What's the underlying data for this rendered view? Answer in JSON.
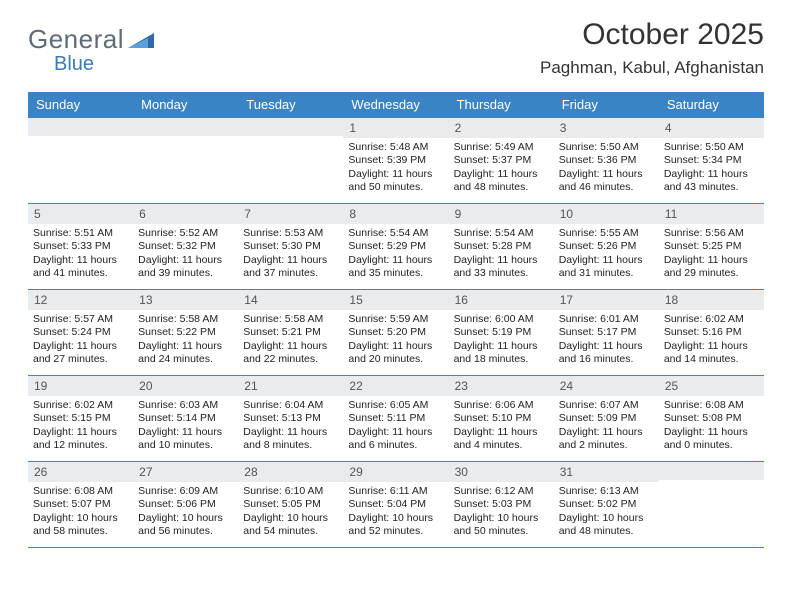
{
  "logo": {
    "word1": "General",
    "word2": "Blue"
  },
  "colors": {
    "header_bg": "#3a83c4",
    "header_text": "#ffffff",
    "daynum_bg": "#e8ecef",
    "border": "#3a83c4",
    "logo_gray": "#5f6b76",
    "logo_blue": "#3a7ab8"
  },
  "title": "October 2025",
  "location": "Paghman, Kabul, Afghanistan",
  "weekdays": [
    "Sunday",
    "Monday",
    "Tuesday",
    "Wednesday",
    "Thursday",
    "Friday",
    "Saturday"
  ],
  "weeks": [
    [
      {
        "empty": true
      },
      {
        "empty": true
      },
      {
        "empty": true
      },
      {
        "num": "1",
        "sunrise": "5:48 AM",
        "sunset": "5:39 PM",
        "daylight": "11 hours and 50 minutes."
      },
      {
        "num": "2",
        "sunrise": "5:49 AM",
        "sunset": "5:37 PM",
        "daylight": "11 hours and 48 minutes."
      },
      {
        "num": "3",
        "sunrise": "5:50 AM",
        "sunset": "5:36 PM",
        "daylight": "11 hours and 46 minutes."
      },
      {
        "num": "4",
        "sunrise": "5:50 AM",
        "sunset": "5:34 PM",
        "daylight": "11 hours and 43 minutes."
      }
    ],
    [
      {
        "num": "5",
        "sunrise": "5:51 AM",
        "sunset": "5:33 PM",
        "daylight": "11 hours and 41 minutes."
      },
      {
        "num": "6",
        "sunrise": "5:52 AM",
        "sunset": "5:32 PM",
        "daylight": "11 hours and 39 minutes."
      },
      {
        "num": "7",
        "sunrise": "5:53 AM",
        "sunset": "5:30 PM",
        "daylight": "11 hours and 37 minutes."
      },
      {
        "num": "8",
        "sunrise": "5:54 AM",
        "sunset": "5:29 PM",
        "daylight": "11 hours and 35 minutes."
      },
      {
        "num": "9",
        "sunrise": "5:54 AM",
        "sunset": "5:28 PM",
        "daylight": "11 hours and 33 minutes."
      },
      {
        "num": "10",
        "sunrise": "5:55 AM",
        "sunset": "5:26 PM",
        "daylight": "11 hours and 31 minutes."
      },
      {
        "num": "11",
        "sunrise": "5:56 AM",
        "sunset": "5:25 PM",
        "daylight": "11 hours and 29 minutes."
      }
    ],
    [
      {
        "num": "12",
        "sunrise": "5:57 AM",
        "sunset": "5:24 PM",
        "daylight": "11 hours and 27 minutes."
      },
      {
        "num": "13",
        "sunrise": "5:58 AM",
        "sunset": "5:22 PM",
        "daylight": "11 hours and 24 minutes."
      },
      {
        "num": "14",
        "sunrise": "5:58 AM",
        "sunset": "5:21 PM",
        "daylight": "11 hours and 22 minutes."
      },
      {
        "num": "15",
        "sunrise": "5:59 AM",
        "sunset": "5:20 PM",
        "daylight": "11 hours and 20 minutes."
      },
      {
        "num": "16",
        "sunrise": "6:00 AM",
        "sunset": "5:19 PM",
        "daylight": "11 hours and 18 minutes."
      },
      {
        "num": "17",
        "sunrise": "6:01 AM",
        "sunset": "5:17 PM",
        "daylight": "11 hours and 16 minutes."
      },
      {
        "num": "18",
        "sunrise": "6:02 AM",
        "sunset": "5:16 PM",
        "daylight": "11 hours and 14 minutes."
      }
    ],
    [
      {
        "num": "19",
        "sunrise": "6:02 AM",
        "sunset": "5:15 PM",
        "daylight": "11 hours and 12 minutes."
      },
      {
        "num": "20",
        "sunrise": "6:03 AM",
        "sunset": "5:14 PM",
        "daylight": "11 hours and 10 minutes."
      },
      {
        "num": "21",
        "sunrise": "6:04 AM",
        "sunset": "5:13 PM",
        "daylight": "11 hours and 8 minutes."
      },
      {
        "num": "22",
        "sunrise": "6:05 AM",
        "sunset": "5:11 PM",
        "daylight": "11 hours and 6 minutes."
      },
      {
        "num": "23",
        "sunrise": "6:06 AM",
        "sunset": "5:10 PM",
        "daylight": "11 hours and 4 minutes."
      },
      {
        "num": "24",
        "sunrise": "6:07 AM",
        "sunset": "5:09 PM",
        "daylight": "11 hours and 2 minutes."
      },
      {
        "num": "25",
        "sunrise": "6:08 AM",
        "sunset": "5:08 PM",
        "daylight": "11 hours and 0 minutes."
      }
    ],
    [
      {
        "num": "26",
        "sunrise": "6:08 AM",
        "sunset": "5:07 PM",
        "daylight": "10 hours and 58 minutes."
      },
      {
        "num": "27",
        "sunrise": "6:09 AM",
        "sunset": "5:06 PM",
        "daylight": "10 hours and 56 minutes."
      },
      {
        "num": "28",
        "sunrise": "6:10 AM",
        "sunset": "5:05 PM",
        "daylight": "10 hours and 54 minutes."
      },
      {
        "num": "29",
        "sunrise": "6:11 AM",
        "sunset": "5:04 PM",
        "daylight": "10 hours and 52 minutes."
      },
      {
        "num": "30",
        "sunrise": "6:12 AM",
        "sunset": "5:03 PM",
        "daylight": "10 hours and 50 minutes."
      },
      {
        "num": "31",
        "sunrise": "6:13 AM",
        "sunset": "5:02 PM",
        "daylight": "10 hours and 48 minutes."
      },
      {
        "empty": true
      }
    ]
  ],
  "labels": {
    "sunrise": "Sunrise:",
    "sunset": "Sunset:",
    "daylight": "Daylight:"
  }
}
